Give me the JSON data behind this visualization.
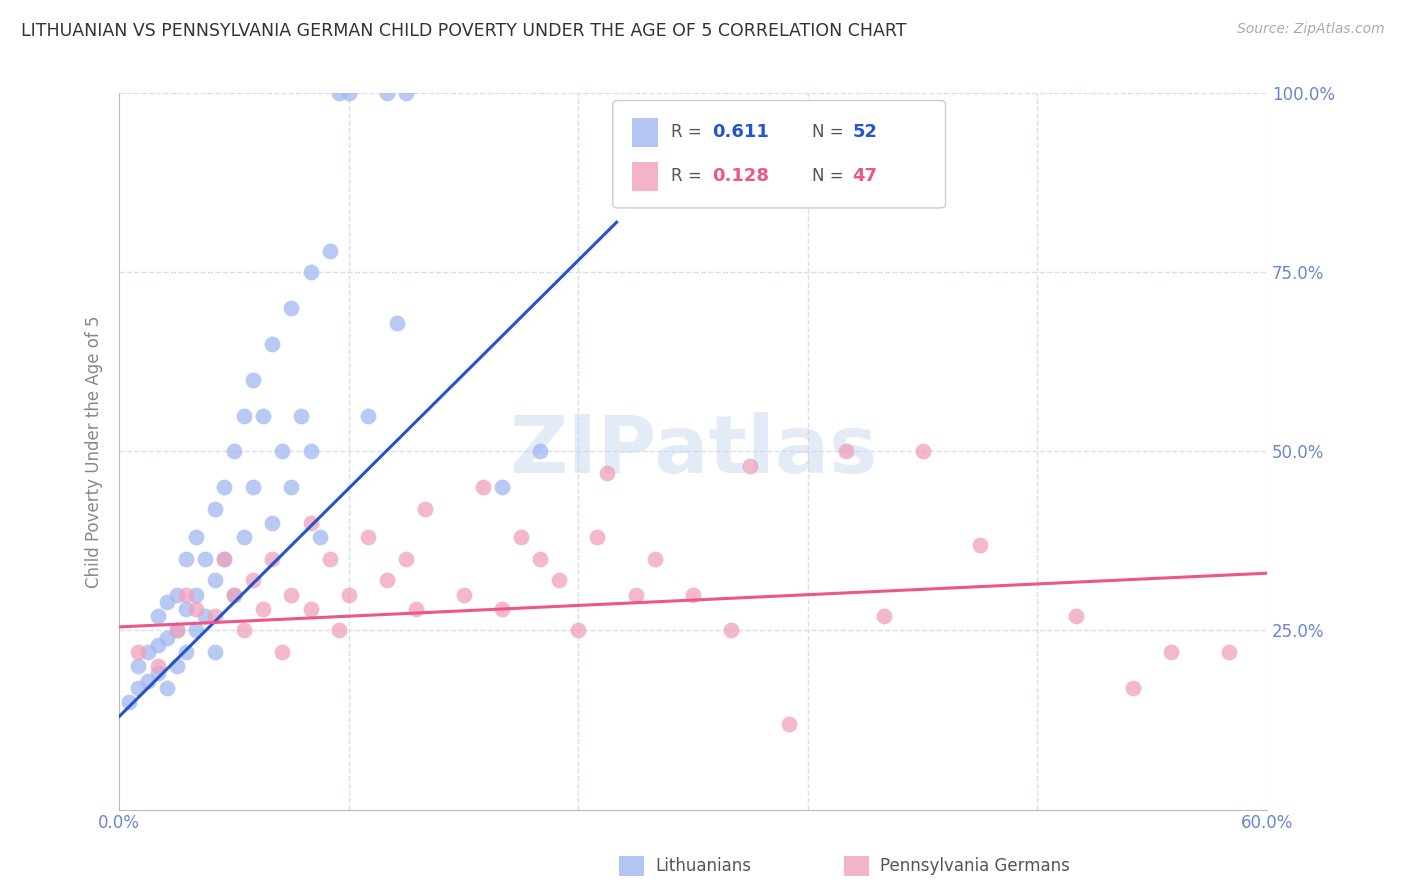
{
  "title": "LITHUANIAN VS PENNSYLVANIA GERMAN CHILD POVERTY UNDER THE AGE OF 5 CORRELATION CHART",
  "source": "Source: ZipAtlas.com",
  "ylabel": "Child Poverty Under the Age of 5",
  "yticks": [
    0.0,
    0.25,
    0.5,
    0.75,
    1.0
  ],
  "ytick_labels": [
    "",
    "25.0%",
    "50.0%",
    "75.0%",
    "100.0%"
  ],
  "xticks": [
    0.0,
    0.12,
    0.24,
    0.36,
    0.48,
    0.6
  ],
  "xtick_labels": [
    "0.0%",
    "",
    "",
    "",
    "",
    "60.0%"
  ],
  "legend_blue_R": "0.611",
  "legend_blue_N": "52",
  "legend_pink_R": "0.128",
  "legend_pink_N": "47",
  "legend_label_blue": "Lithuanians",
  "legend_label_pink": "Pennsylvania Germans",
  "blue_color": "#a0b8f0",
  "pink_color": "#f0a0bb",
  "blue_line_color": "#2255cc",
  "pink_line_color": "#ee5588",
  "blue_line_x": [
    0.0,
    0.26
  ],
  "blue_line_y": [
    0.13,
    0.82
  ],
  "pink_line_x": [
    0.0,
    0.6
  ],
  "pink_line_y": [
    0.255,
    0.33
  ],
  "watermark_text": "ZIPatlas",
  "watermark_color": "#c8d8f0",
  "watermark_alpha": 0.5,
  "blue_scatter_x": [
    0.005,
    0.01,
    0.01,
    0.015,
    0.015,
    0.02,
    0.02,
    0.02,
    0.025,
    0.025,
    0.025,
    0.03,
    0.03,
    0.03,
    0.035,
    0.035,
    0.035,
    0.04,
    0.04,
    0.04,
    0.045,
    0.045,
    0.05,
    0.05,
    0.05,
    0.055,
    0.055,
    0.06,
    0.06,
    0.065,
    0.065,
    0.07,
    0.07,
    0.075,
    0.08,
    0.08,
    0.085,
    0.09,
    0.09,
    0.095,
    0.1,
    0.1,
    0.105,
    0.11,
    0.115,
    0.12,
    0.13,
    0.14,
    0.145,
    0.15,
    0.2,
    0.22
  ],
  "blue_scatter_y": [
    0.15,
    0.17,
    0.2,
    0.18,
    0.22,
    0.19,
    0.23,
    0.27,
    0.17,
    0.24,
    0.29,
    0.2,
    0.25,
    0.3,
    0.22,
    0.28,
    0.35,
    0.25,
    0.3,
    0.38,
    0.27,
    0.35,
    0.22,
    0.32,
    0.42,
    0.35,
    0.45,
    0.3,
    0.5,
    0.38,
    0.55,
    0.45,
    0.6,
    0.55,
    0.4,
    0.65,
    0.5,
    0.45,
    0.7,
    0.55,
    0.5,
    0.75,
    0.38,
    0.78,
    1.0,
    1.0,
    0.55,
    1.0,
    0.68,
    1.0,
    0.45,
    0.5
  ],
  "pink_scatter_x": [
    0.01,
    0.02,
    0.03,
    0.035,
    0.04,
    0.05,
    0.055,
    0.06,
    0.065,
    0.07,
    0.075,
    0.08,
    0.085,
    0.09,
    0.1,
    0.1,
    0.11,
    0.115,
    0.12,
    0.13,
    0.14,
    0.15,
    0.155,
    0.16,
    0.18,
    0.19,
    0.2,
    0.21,
    0.22,
    0.23,
    0.24,
    0.25,
    0.255,
    0.27,
    0.28,
    0.3,
    0.32,
    0.33,
    0.35,
    0.38,
    0.4,
    0.42,
    0.45,
    0.5,
    0.53,
    0.55,
    0.58
  ],
  "pink_scatter_y": [
    0.22,
    0.2,
    0.25,
    0.3,
    0.28,
    0.27,
    0.35,
    0.3,
    0.25,
    0.32,
    0.28,
    0.35,
    0.22,
    0.3,
    0.28,
    0.4,
    0.35,
    0.25,
    0.3,
    0.38,
    0.32,
    0.35,
    0.28,
    0.42,
    0.3,
    0.45,
    0.28,
    0.38,
    0.35,
    0.32,
    0.25,
    0.38,
    0.47,
    0.3,
    0.35,
    0.3,
    0.25,
    0.48,
    0.12,
    0.5,
    0.27,
    0.5,
    0.37,
    0.27,
    0.17,
    0.22,
    0.22
  ],
  "background_color": "#ffffff",
  "grid_color": "#d8ddf0",
  "title_color": "#333333",
  "axis_label_color": "#6688cc",
  "ylabel_color": "#888888",
  "marker_size": 130
}
